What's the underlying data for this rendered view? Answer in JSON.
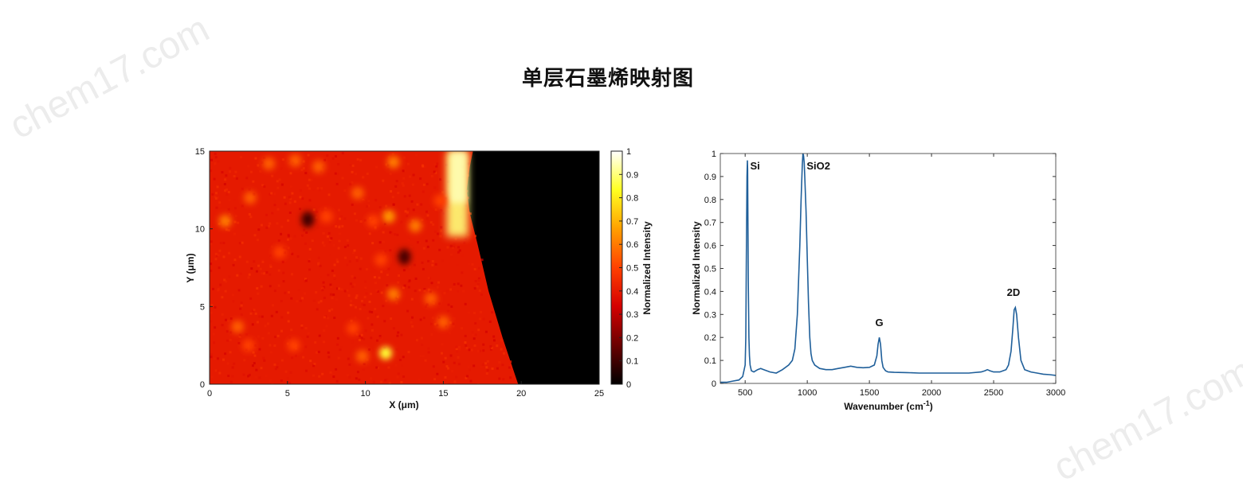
{
  "page": {
    "title": "单层石墨烯映射图",
    "watermark": "chem17.com"
  },
  "chart_data": [
    {
      "type": "heatmap",
      "xlabel": "X (μm)",
      "ylabel": "Y (μm)",
      "xlim": [
        0,
        25
      ],
      "ylim": [
        0,
        15
      ],
      "xticks": [
        0,
        5,
        10,
        15,
        20,
        25
      ],
      "yticks": [
        0,
        5,
        10,
        15
      ],
      "colorbar": {
        "label": "Normalized Intensity",
        "range": [
          0,
          1
        ],
        "ticks": [
          0,
          0.1,
          0.2,
          0.3,
          0.4,
          0.5,
          0.6,
          0.7,
          0.8,
          0.9,
          1
        ],
        "colormap": "hot",
        "colors": [
          "#000000",
          "#6a0000",
          "#d40000",
          "#ff4000",
          "#ffa000",
          "#ffff20",
          "#ffffff"
        ]
      },
      "graphene_edge_x": [
        [
          0,
          19.8
        ],
        [
          3,
          18.8
        ],
        [
          6,
          17.9
        ],
        [
          9,
          17.2
        ],
        [
          11,
          16.7
        ],
        [
          12.5,
          16.5
        ],
        [
          14,
          16.7
        ],
        [
          15,
          16.9
        ]
      ],
      "bright_edge_strip": {
        "x": [
          15.2,
          16.6
        ],
        "y": [
          10,
          15
        ],
        "value": 0.9
      },
      "background_value": 0.4,
      "bright_spots": [
        {
          "x": 1.0,
          "y": 10.5,
          "v": 0.6
        },
        {
          "x": 2.6,
          "y": 12.0,
          "v": 0.55
        },
        {
          "x": 3.8,
          "y": 14.2,
          "v": 0.55
        },
        {
          "x": 5.5,
          "y": 14.4,
          "v": 0.55
        },
        {
          "x": 7.0,
          "y": 14.0,
          "v": 0.55
        },
        {
          "x": 9.5,
          "y": 12.3,
          "v": 0.55
        },
        {
          "x": 11.8,
          "y": 14.3,
          "v": 0.6
        },
        {
          "x": 11.5,
          "y": 10.8,
          "v": 0.65
        },
        {
          "x": 13.2,
          "y": 10.2,
          "v": 0.6
        },
        {
          "x": 10.5,
          "y": 10.5,
          "v": 0.5
        },
        {
          "x": 7.5,
          "y": 10.8,
          "v": 0.5
        },
        {
          "x": 1.8,
          "y": 3.7,
          "v": 0.55
        },
        {
          "x": 2.5,
          "y": 2.5,
          "v": 0.5
        },
        {
          "x": 5.4,
          "y": 2.5,
          "v": 0.5
        },
        {
          "x": 9.2,
          "y": 3.6,
          "v": 0.5
        },
        {
          "x": 9.8,
          "y": 1.8,
          "v": 0.55
        },
        {
          "x": 11.3,
          "y": 2.0,
          "v": 0.85
        },
        {
          "x": 11.8,
          "y": 5.8,
          "v": 0.6
        },
        {
          "x": 14.2,
          "y": 5.5,
          "v": 0.55
        },
        {
          "x": 11.0,
          "y": 8.0,
          "v": 0.5
        },
        {
          "x": 14.8,
          "y": 11.8,
          "v": 0.5
        },
        {
          "x": 4.5,
          "y": 8.5,
          "v": 0.5
        },
        {
          "x": 15.0,
          "y": 4.0,
          "v": 0.55
        }
      ],
      "dark_spots": [
        {
          "x": 6.3,
          "y": 10.6,
          "v": 0.1
        },
        {
          "x": 12.5,
          "y": 8.2,
          "v": 0.12
        }
      ]
    },
    {
      "type": "line",
      "xlabel": "Wavenumber (cm -1)",
      "xlabel_main": "Wavenumber (cm",
      "xlabel_sup": "-1",
      "xlabel_close": ")",
      "ylabel": "Normalized Intensity",
      "xlim": [
        300,
        3000
      ],
      "ylim": [
        0,
        1
      ],
      "xticks": [
        500,
        1000,
        1500,
        2000,
        2500,
        3000
      ],
      "yticks": [
        0,
        0.1,
        0.2,
        0.3,
        0.4,
        0.5,
        0.6,
        0.7,
        0.8,
        0.9,
        1
      ],
      "line_color": "#1f5f9a",
      "series": [
        {
          "x": [
            300,
            350,
            400,
            450,
            480,
            500,
            505,
            510,
            515,
            518,
            520,
            522,
            525,
            530,
            535,
            540,
            550,
            570,
            600,
            625,
            650,
            700,
            750,
            800,
            850,
            880,
            900,
            920,
            940,
            950,
            960,
            965,
            970,
            975,
            980,
            990,
            1000,
            1010,
            1020,
            1030,
            1040,
            1060,
            1100,
            1150,
            1200,
            1250,
            1300,
            1350,
            1400,
            1450,
            1500,
            1540,
            1560,
            1570,
            1580,
            1590,
            1600,
            1610,
            1630,
            1650,
            1700,
            1800,
            1900,
            2000,
            2100,
            2200,
            2300,
            2400,
            2430,
            2450,
            2470,
            2500,
            2550,
            2600,
            2620,
            2640,
            2655,
            2665,
            2675,
            2685,
            2700,
            2720,
            2750,
            2800,
            2850,
            2900,
            2950,
            3000
          ],
          "y": [
            0.005,
            0.005,
            0.01,
            0.015,
            0.03,
            0.08,
            0.2,
            0.55,
            0.9,
            0.97,
            0.93,
            0.75,
            0.45,
            0.2,
            0.12,
            0.08,
            0.055,
            0.05,
            0.06,
            0.065,
            0.06,
            0.05,
            0.045,
            0.06,
            0.08,
            0.1,
            0.15,
            0.3,
            0.6,
            0.8,
            0.95,
            1.0,
            0.99,
            0.96,
            0.9,
            0.75,
            0.55,
            0.35,
            0.2,
            0.13,
            0.1,
            0.08,
            0.065,
            0.06,
            0.06,
            0.065,
            0.07,
            0.075,
            0.07,
            0.068,
            0.07,
            0.08,
            0.12,
            0.17,
            0.2,
            0.17,
            0.1,
            0.07,
            0.055,
            0.05,
            0.048,
            0.047,
            0.045,
            0.045,
            0.045,
            0.045,
            0.045,
            0.05,
            0.055,
            0.06,
            0.055,
            0.05,
            0.05,
            0.06,
            0.08,
            0.14,
            0.24,
            0.32,
            0.33,
            0.3,
            0.2,
            0.1,
            0.06,
            0.05,
            0.045,
            0.04,
            0.038,
            0.035
          ]
        }
      ],
      "annotations": [
        {
          "text": "Si",
          "x": 580,
          "y": 0.93
        },
        {
          "text": "SiO2",
          "x": 1090,
          "y": 0.93
        },
        {
          "text": "G",
          "x": 1580,
          "y": 0.25
        },
        {
          "text": "2D",
          "x": 2660,
          "y": 0.38
        }
      ]
    }
  ]
}
